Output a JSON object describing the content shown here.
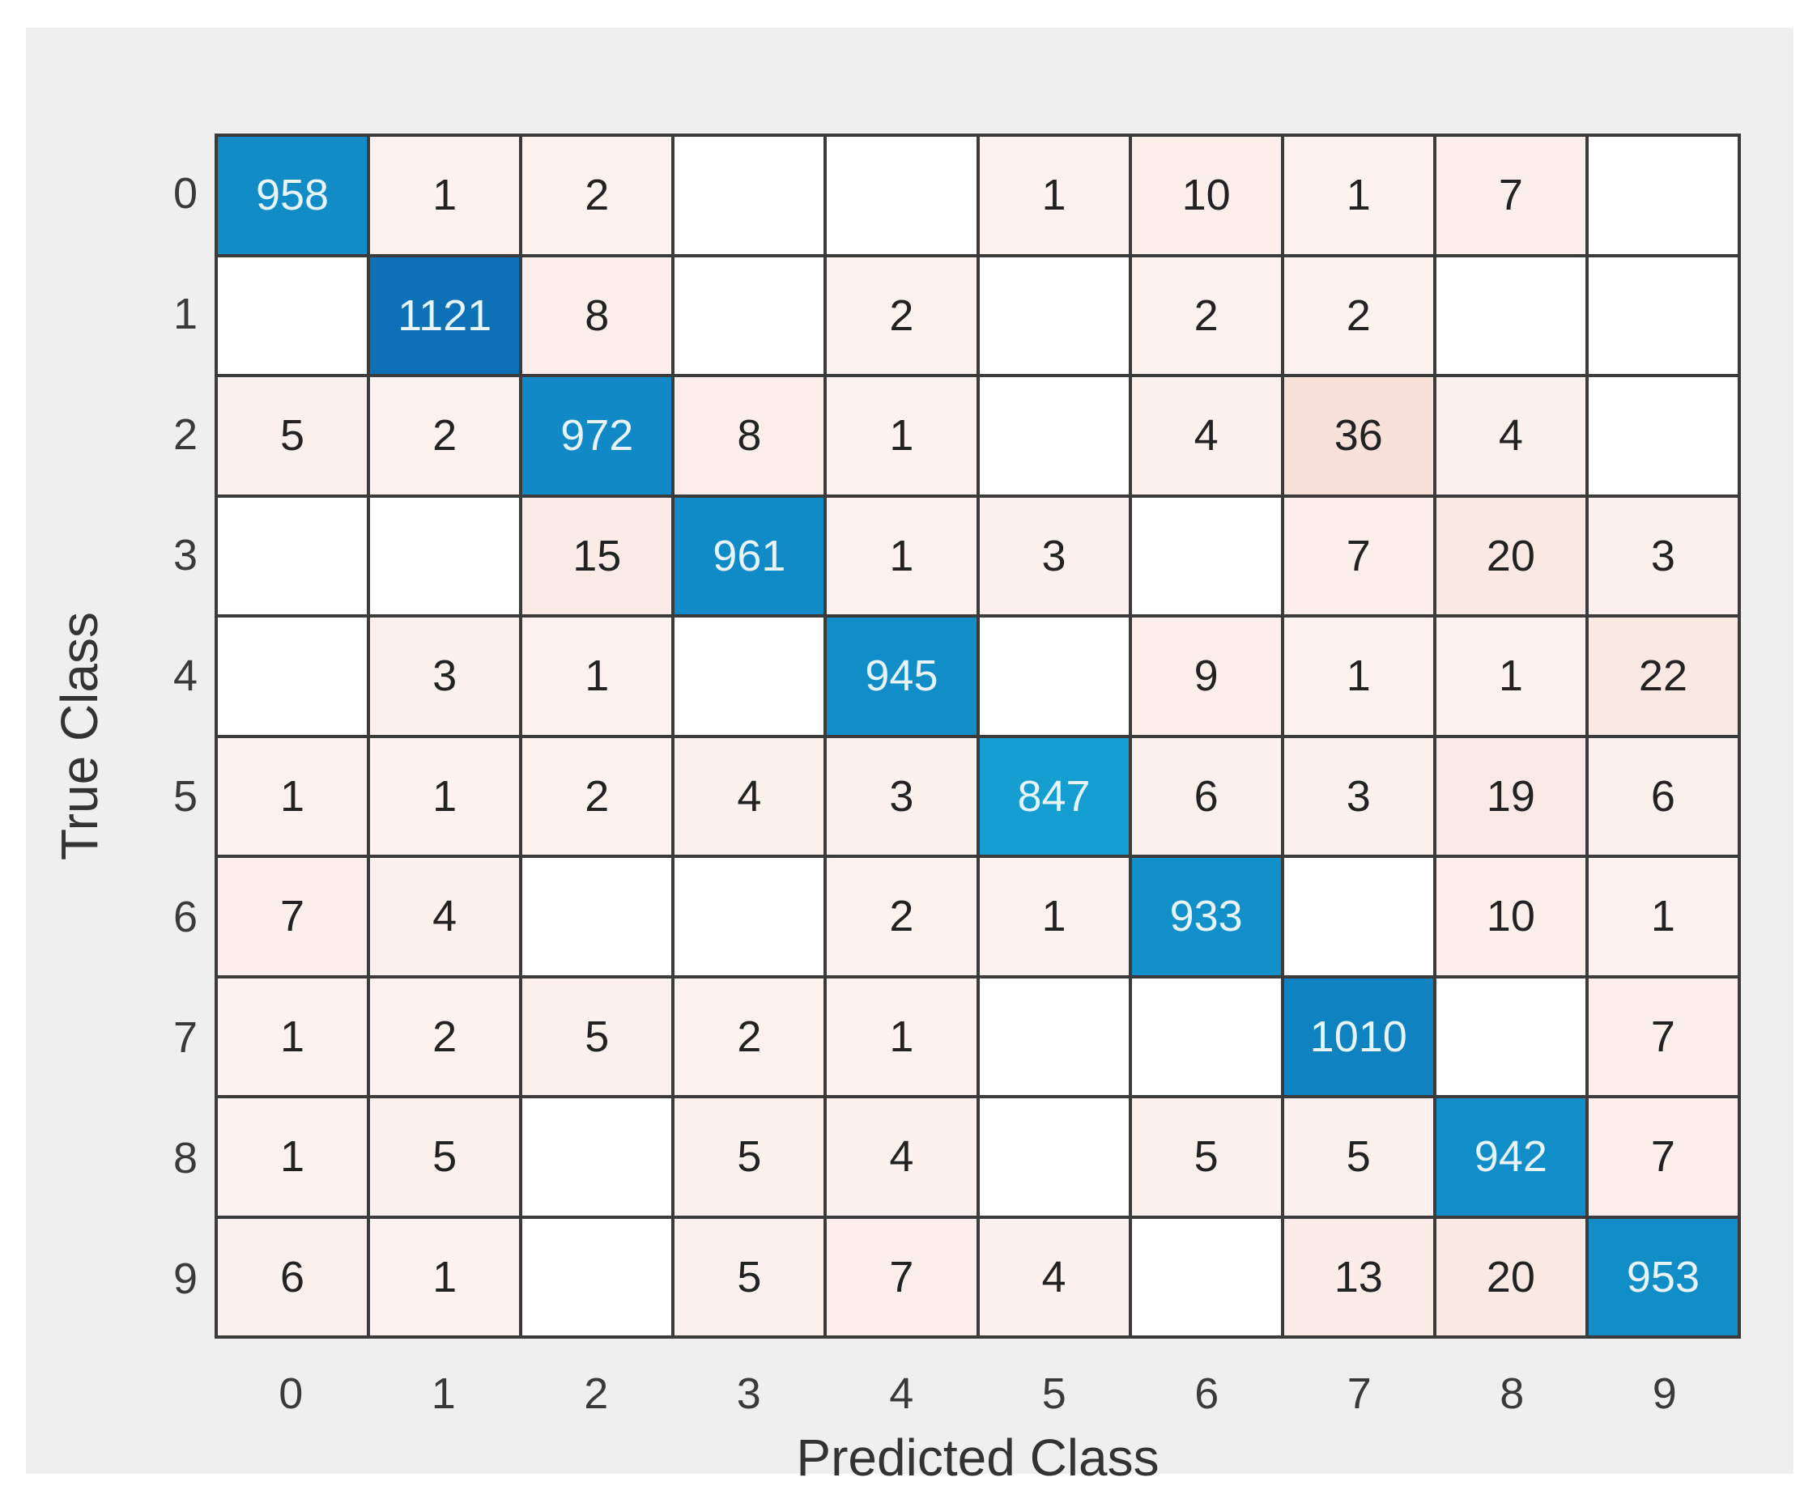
{
  "chart_data": {
    "type": "heatmap",
    "subtype": "confusion-matrix",
    "title": "",
    "xlabel": "Predicted Class",
    "ylabel": "True Class",
    "x_tick_labels": [
      "0",
      "1",
      "2",
      "3",
      "4",
      "5",
      "6",
      "7",
      "8",
      "9"
    ],
    "y_tick_labels": [
      "0",
      "1",
      "2",
      "3",
      "4",
      "5",
      "6",
      "7",
      "8",
      "9"
    ],
    "matrix": [
      [
        958,
        1,
        2,
        0,
        0,
        1,
        10,
        1,
        7,
        0
      ],
      [
        0,
        1121,
        8,
        0,
        2,
        0,
        2,
        2,
        0,
        0
      ],
      [
        5,
        2,
        972,
        8,
        1,
        0,
        4,
        36,
        4,
        0
      ],
      [
        0,
        0,
        15,
        961,
        1,
        3,
        0,
        7,
        20,
        3
      ],
      [
        0,
        3,
        1,
        0,
        945,
        0,
        9,
        1,
        1,
        22
      ],
      [
        1,
        1,
        2,
        4,
        3,
        847,
        6,
        3,
        19,
        6
      ],
      [
        7,
        4,
        0,
        0,
        2,
        1,
        933,
        0,
        10,
        1
      ],
      [
        1,
        2,
        5,
        2,
        1,
        0,
        0,
        1010,
        0,
        7
      ],
      [
        1,
        5,
        0,
        5,
        4,
        0,
        5,
        5,
        942,
        7
      ],
      [
        6,
        1,
        0,
        5,
        7,
        4,
        0,
        13,
        20,
        953
      ]
    ],
    "layout": {
      "grid": true,
      "legend": "none",
      "zero_cells_blank": true
    },
    "colors": {
      "page_bg": "#ffffff",
      "panel_bg": "#efefef",
      "grid_line": "#3b3b3b",
      "zero_cell": "#ffffff",
      "offdiag_tint_light": "#fdf2ef",
      "offdiag_tint_deep": "#f8e1d9",
      "diagonal_light": "#149ed2",
      "diagonal_dark": "#0c71b7",
      "diagonal_text": "#e8f4fc",
      "offdiag_text": "#222222",
      "tick_text": "#3a3a3a",
      "axis_label_text": "#333333"
    },
    "value_range": {
      "diagonal_min": 847,
      "diagonal_max": 1121,
      "offdiag_min": 1,
      "offdiag_max": 36
    }
  }
}
